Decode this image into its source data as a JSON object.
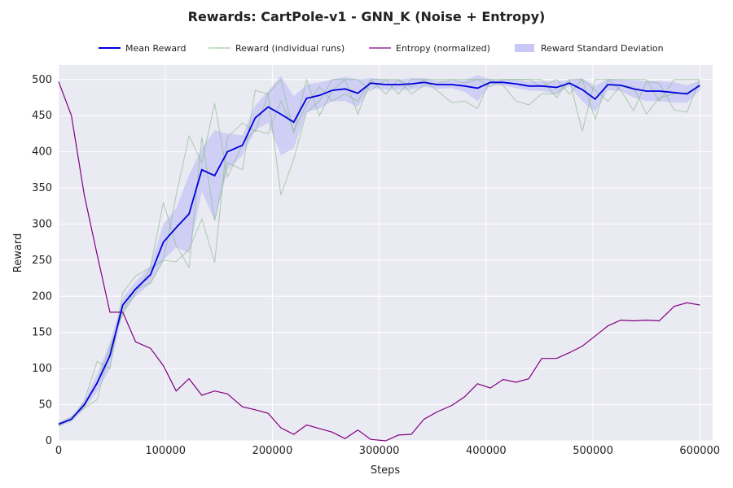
{
  "chart_data": {
    "type": "line",
    "title": "Rewards: CartPole-v1 - GNN_K (Noise + Entropy)",
    "xlabel": "Steps",
    "ylabel": "Reward",
    "xlim": [
      0,
      612000
    ],
    "ylim": [
      0,
      520
    ],
    "x_ticks": [
      0,
      100000,
      200000,
      300000,
      400000,
      500000,
      600000
    ],
    "y_ticks": [
      0,
      50,
      100,
      150,
      200,
      250,
      300,
      350,
      400,
      450,
      500
    ],
    "grid": true,
    "legend_position": "top",
    "legend": [
      "Mean Reward",
      "Reward (individual runs)",
      "Entropy (normalized)",
      "Reward Standard Deviation"
    ],
    "colors": {
      "plot_background": "#eaeaf2",
      "grid": "#ffffff",
      "mean": "#0000dd",
      "runs": "#8fbc8f",
      "entropy": "#800080",
      "std_band": "#c8c8f5"
    },
    "x": [
      0,
      12000,
      24000,
      36000,
      48000,
      60000,
      72000,
      86000,
      98000,
      110000,
      122000,
      134000,
      146000,
      158000,
      172000,
      184000,
      196000,
      208000,
      220000,
      232000,
      244000,
      256000,
      268000,
      280000,
      292000,
      306000,
      318000,
      330000,
      342000,
      354000,
      368000,
      380000,
      392000,
      404000,
      416000,
      428000,
      440000,
      452000,
      466000,
      478000,
      490000,
      502000,
      514000,
      526000,
      538000,
      550000,
      562000,
      576000,
      588000,
      600000
    ],
    "series": [
      {
        "name": "Mean Reward",
        "role": "mean",
        "values": [
          23,
          30,
          50,
          80,
          118,
          188,
          210,
          230,
          275,
          295,
          314,
          375,
          367,
          400,
          409,
          447,
          462,
          452,
          441,
          474,
          478,
          485,
          487,
          481,
          495,
          493,
          493,
          494,
          496,
          493,
          493,
          491,
          488,
          496,
          496,
          494,
          491,
          491,
          489,
          495,
          486,
          473,
          493,
          492,
          487,
          484,
          484,
          482,
          480,
          492
        ]
      },
      {
        "name": "Reward Standard Deviation",
        "role": "std_band",
        "lower": [
          20,
          26,
          44,
          68,
          100,
          178,
          200,
          218,
          250,
          268,
          260,
          345,
          305,
          375,
          395,
          430,
          440,
          395,
          405,
          455,
          460,
          470,
          470,
          462,
          488,
          486,
          486,
          486,
          490,
          487,
          488,
          483,
          470,
          492,
          492,
          488,
          485,
          484,
          480,
          491,
          470,
          455,
          485,
          484,
          475,
          470,
          470,
          468,
          468,
          485
        ],
        "upper": [
          26,
          34,
          56,
          92,
          136,
          198,
          220,
          242,
          300,
          322,
          368,
          405,
          430,
          425,
          423,
          464,
          484,
          505,
          477,
          493,
          496,
          500,
          504,
          500,
          502,
          500,
          500,
          502,
          502,
          499,
          498,
          499,
          506,
          500,
          500,
          500,
          497,
          498,
          498,
          499,
          502,
          491,
          501,
          500,
          499,
          498,
          498,
          496,
          492,
          499
        ]
      },
      {
        "name": "Reward (individual runs)",
        "role": "run",
        "values": [
          25,
          28,
          55,
          110,
          100,
          205,
          228,
          240,
          330,
          270,
          240,
          420,
          305,
          385,
          375,
          485,
          480,
          340,
          390,
          455,
          470,
          500,
          500,
          500,
          485,
          500,
          480,
          500,
          500,
          500,
          500,
          495,
          500,
          500,
          500,
          500,
          500,
          500,
          475,
          500,
          500,
          445,
          500,
          500,
          500,
          500,
          470,
          500,
          500,
          500
        ]
      },
      {
        "name": "Reward (individual runs)",
        "role": "run",
        "values": [
          22,
          33,
          45,
          57,
          125,
          180,
          210,
          218,
          250,
          248,
          265,
          307,
          247,
          420,
          440,
          428,
          480,
          500,
          425,
          500,
          450,
          485,
          500,
          452,
          500,
          500,
          500,
          490,
          500,
          485,
          468,
          470,
          460,
          500,
          492,
          470,
          465,
          480,
          480,
          500,
          428,
          500,
          500,
          485,
          457,
          497,
          495,
          458,
          455,
          500
        ]
      },
      {
        "name": "Reward (individual runs)",
        "role": "run",
        "values": [
          20,
          30,
          48,
          80,
          130,
          175,
          205,
          238,
          250,
          340,
          422,
          385,
          467,
          365,
          410,
          430,
          425,
          470,
          430,
          465,
          490,
          470,
          480,
          470,
          500,
          480,
          500,
          480,
          492,
          494,
          500,
          500,
          500,
          490,
          500,
          500,
          500,
          490,
          500,
          480,
          500,
          485,
          470,
          492,
          490,
          452,
          475,
          480,
          482,
          490
        ]
      },
      {
        "name": "Entropy (normalized)",
        "role": "entropy",
        "values": [
          497,
          450,
          340,
          258,
          178,
          178,
          137,
          128,
          104,
          69,
          86,
          63,
          69,
          65,
          47,
          43,
          38,
          18,
          9,
          22,
          17,
          12,
          3,
          15,
          2,
          0,
          8,
          9,
          30,
          40,
          49,
          61,
          79,
          73,
          85,
          81,
          86,
          114,
          114,
          122,
          131,
          145,
          159,
          167,
          166,
          167,
          166,
          186,
          191,
          188
        ]
      }
    ]
  }
}
